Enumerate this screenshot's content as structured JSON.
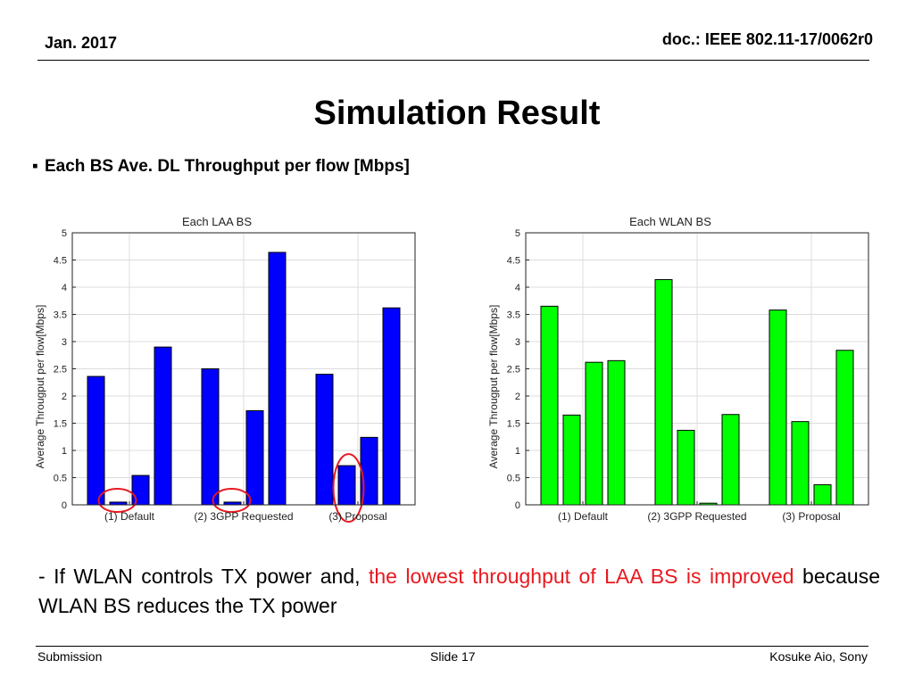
{
  "header": {
    "date": "Jan. 2017",
    "doc": "doc.: IEEE 802.11-17/0062r0"
  },
  "title": "Simulation Result",
  "bullet": {
    "marker": "▪",
    "text": "Each BS Ave. DL Throughput per flow [Mbps]"
  },
  "chart_data": [
    {
      "type": "bar",
      "title": "Each LAA BS",
      "ylabel": "Average Througput per flow[Mbps]",
      "xlabel": "",
      "ylim": [
        0,
        5
      ],
      "yticks": [
        "0",
        "0.5",
        "1",
        "1.5",
        "2",
        "2.5",
        "3",
        "3.5",
        "4",
        "4.5",
        "5"
      ],
      "categories": [
        "(1) Default",
        "(2) 3GPP Requested",
        "(3) Proposal"
      ],
      "groups": [
        [
          2.36,
          0.05,
          0.54,
          2.9
        ],
        [
          2.5,
          0.05,
          1.73,
          4.64
        ],
        [
          2.4,
          0.72,
          1.24,
          3.62
        ]
      ],
      "color": "#0000ff",
      "grid": true,
      "highlights": [
        {
          "category": 0,
          "bar": 1
        },
        {
          "category": 1,
          "bar": 1
        },
        {
          "category": 2,
          "bar": 1
        }
      ],
      "highlight_color": "#e8191f"
    },
    {
      "type": "bar",
      "title": "Each WLAN BS",
      "ylabel": "Average Througput per flow[Mbps]",
      "xlabel": "",
      "ylim": [
        0,
        5
      ],
      "yticks": [
        "0",
        "0.5",
        "1",
        "1.5",
        "2",
        "2.5",
        "3",
        "3.5",
        "4",
        "4.5",
        "5"
      ],
      "categories": [
        "(1) Default",
        "(2) 3GPP Requested",
        "(3) Proposal"
      ],
      "groups": [
        [
          3.65,
          1.65,
          2.62,
          2.65
        ],
        [
          4.14,
          1.37,
          0.03,
          1.66
        ],
        [
          3.58,
          1.53,
          0.37,
          2.84
        ]
      ],
      "color": "#00ff00",
      "grid": true,
      "highlights": []
    }
  ],
  "note": {
    "part1": "- If WLAN controls TX power and, ",
    "part2": "the lowest throughput of LAA BS is improved",
    "part3": " because WLAN BS reduces the TX power",
    "highlight_color": "#e8191f"
  },
  "footer": {
    "left": "Submission",
    "center": "Slide 17",
    "right": "Kosuke Aio, Sony"
  }
}
